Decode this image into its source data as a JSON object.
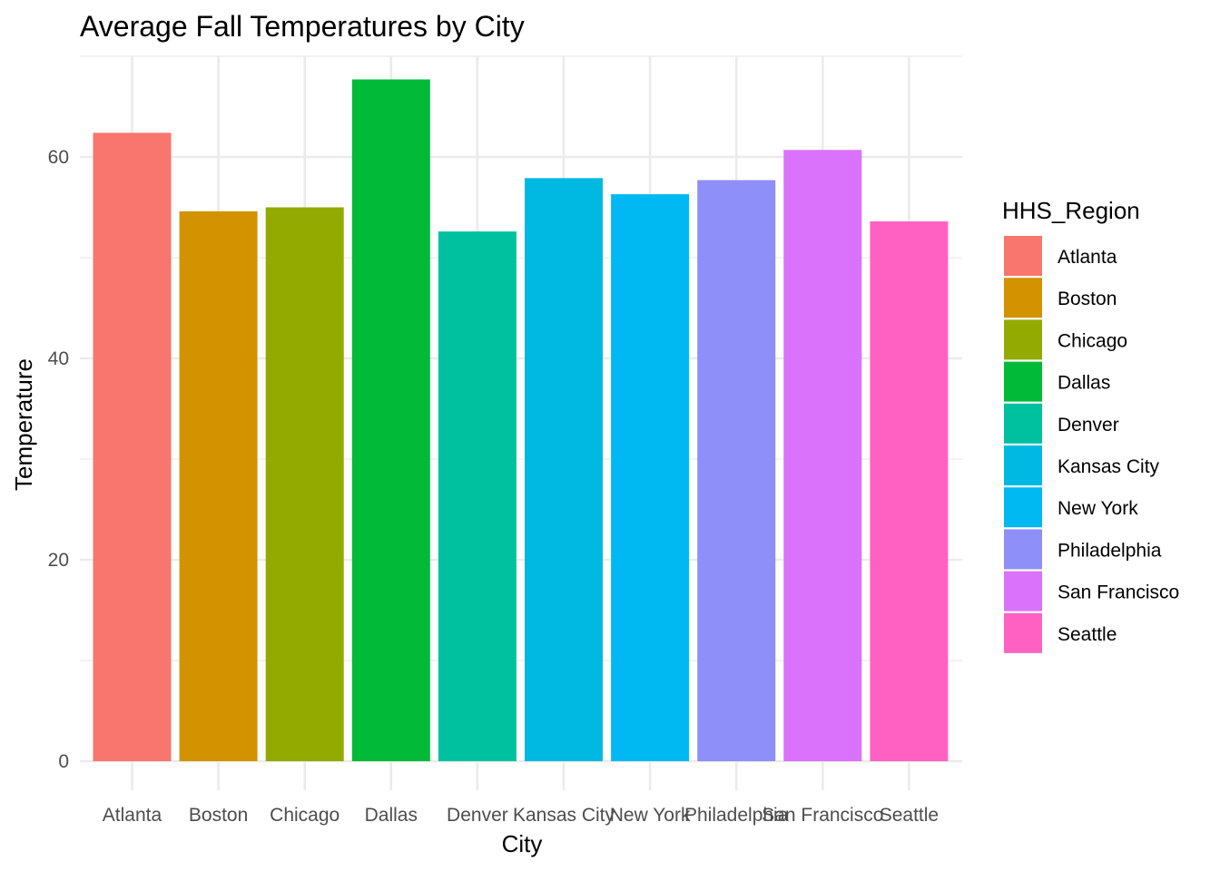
{
  "chart_data": {
    "type": "bar",
    "title": "Average Fall Temperatures by City",
    "xlabel": "City",
    "ylabel": "Temperature",
    "ylim": [
      0,
      70
    ],
    "yticks": [
      0,
      20,
      40,
      60
    ],
    "grid": true,
    "legend_position": "right",
    "legend_title": "HHS_Region",
    "categories": [
      "Atlanta",
      "Boston",
      "Chicago",
      "Dallas",
      "Denver",
      "Kansas City",
      "New York",
      "Philadelphia",
      "San Francisco",
      "Seattle"
    ],
    "values": [
      62.4,
      54.6,
      55.0,
      67.7,
      52.6,
      57.9,
      56.3,
      57.7,
      60.7,
      53.6
    ],
    "colors": [
      "#F8766D",
      "#D39200",
      "#93AA00",
      "#00BA38",
      "#00C19F",
      "#00B9E3",
      "#00B9F3",
      "#8E8FF8",
      "#DB72FB",
      "#FF61C3"
    ]
  }
}
